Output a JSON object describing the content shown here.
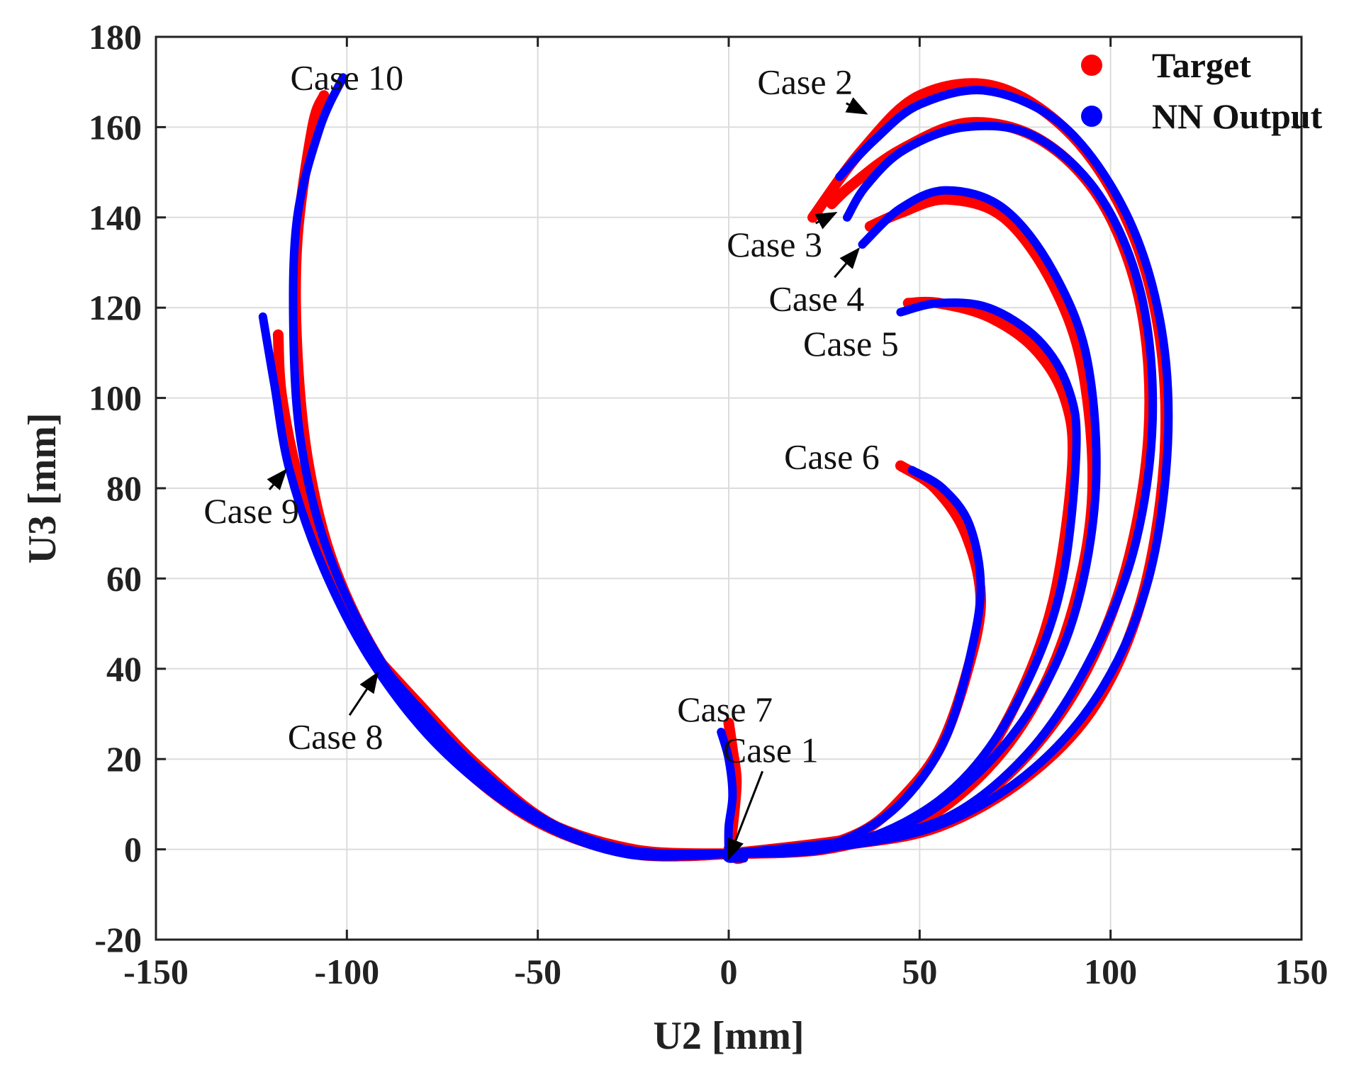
{
  "chart_data": {
    "type": "line",
    "xlabel": "U2 [mm]",
    "ylabel": "U3 [mm]",
    "xlim": [
      -150,
      150
    ],
    "ylim": [
      -20,
      180
    ],
    "xticks": [
      -150,
      -100,
      -50,
      0,
      50,
      100,
      150
    ],
    "yticks": [
      -20,
      0,
      20,
      40,
      60,
      80,
      100,
      120,
      140,
      160,
      180
    ],
    "xtick_labels": [
      "-150",
      "-100",
      "-50",
      "0",
      "50",
      "100",
      "150"
    ],
    "ytick_labels": [
      "-20",
      "0",
      "20",
      "40",
      "60",
      "80",
      "100",
      "120",
      "140",
      "160",
      "180"
    ],
    "grid": true,
    "legend": {
      "placement": "top-right",
      "entries": [
        "Target",
        "NN Output"
      ]
    },
    "colors": {
      "Target": "#ff0000",
      "NN Output": "#0000ff"
    },
    "series": [
      {
        "name": "Target",
        "cases": [
          {
            "case": "Case 1",
            "points": [
              [
                0,
                0
              ],
              [
                1,
                -1
              ],
              [
                2,
                -2
              ],
              [
                3,
                -2
              ]
            ]
          },
          {
            "case": "Case 2",
            "points": [
              [
                0,
                -1
              ],
              [
                30,
                1
              ],
              [
                55,
                5
              ],
              [
                78,
                16
              ],
              [
                96,
                32
              ],
              [
                108,
                55
              ],
              [
                114,
                85
              ],
              [
                113,
                113
              ],
              [
                105,
                138
              ],
              [
                90,
                158
              ],
              [
                70,
                169
              ],
              [
                50,
                167
              ],
              [
                35,
                155
              ],
              [
                22,
                140
              ]
            ]
          },
          {
            "case": "Case 3",
            "points": [
              [
                0,
                -1
              ],
              [
                30,
                2
              ],
              [
                55,
                6
              ],
              [
                75,
                18
              ],
              [
                92,
                37
              ],
              [
                104,
                62
              ],
              [
                110,
                92
              ],
              [
                108,
                120
              ],
              [
                98,
                143
              ],
              [
                82,
                157
              ],
              [
                63,
                161
              ],
              [
                45,
                155
              ],
              [
                32,
                147
              ],
              [
                27,
                143
              ]
            ]
          },
          {
            "case": "Case 4",
            "points": [
              [
                0,
                -1
              ],
              [
                25,
                1
              ],
              [
                50,
                6
              ],
              [
                72,
                22
              ],
              [
                87,
                45
              ],
              [
                95,
                75
              ],
              [
                93,
                105
              ],
              [
                85,
                125
              ],
              [
                72,
                140
              ],
              [
                57,
                144
              ],
              [
                45,
                141
              ],
              [
                37,
                138
              ]
            ]
          },
          {
            "case": "Case 5",
            "points": [
              [
                0,
                -1
              ],
              [
                25,
                0
              ],
              [
                45,
                5
              ],
              [
                62,
                15
              ],
              [
                75,
                32
              ],
              [
                85,
                55
              ],
              [
                90,
                85
              ],
              [
                88,
                100
              ],
              [
                80,
                111
              ],
              [
                68,
                118
              ],
              [
                55,
                121
              ],
              [
                47,
                121
              ]
            ]
          },
          {
            "case": "Case 6",
            "points": [
              [
                0,
                -1
              ],
              [
                20,
                0
              ],
              [
                35,
                4
              ],
              [
                45,
                11
              ],
              [
                55,
                22
              ],
              [
                62,
                38
              ],
              [
                66,
                55
              ],
              [
                62,
                70
              ],
              [
                54,
                80
              ],
              [
                45,
                85
              ]
            ]
          },
          {
            "case": "Case 7",
            "points": [
              [
                0,
                -1
              ],
              [
                1,
                5
              ],
              [
                2,
                15
              ],
              [
                1,
                22
              ],
              [
                0,
                28
              ]
            ]
          },
          {
            "case": "Case 8",
            "points": [
              [
                0,
                -1
              ],
              [
                -20,
                -1
              ],
              [
                -45,
                5
              ],
              [
                -65,
                18
              ],
              [
                -82,
                33
              ],
              [
                -95,
                45
              ]
            ]
          },
          {
            "case": "Case 9",
            "points": [
              [
                0,
                -1
              ],
              [
                -25,
                -1
              ],
              [
                -50,
                6
              ],
              [
                -72,
                20
              ],
              [
                -90,
                38
              ],
              [
                -103,
                58
              ],
              [
                -112,
                80
              ],
              [
                -117,
                100
              ],
              [
                -118,
                114
              ]
            ]
          },
          {
            "case": "Case 10",
            "points": [
              [
                0,
                -1
              ],
              [
                -25,
                0
              ],
              [
                -50,
                7
              ],
              [
                -72,
                21
              ],
              [
                -90,
                40
              ],
              [
                -103,
                62
              ],
              [
                -110,
                85
              ],
              [
                -113,
                110
              ],
              [
                -113,
                135
              ],
              [
                -109,
                160
              ],
              [
                -106,
                167
              ]
            ]
          }
        ]
      },
      {
        "name": "NN Output",
        "cases": [
          {
            "case": "Case 1",
            "points": [
              [
                -1,
                -1
              ],
              [
                0,
                -2
              ],
              [
                2,
                -2
              ],
              [
                4,
                -2
              ]
            ]
          },
          {
            "case": "Case 2",
            "points": [
              [
                0,
                -1
              ],
              [
                32,
                1
              ],
              [
                57,
                6
              ],
              [
                80,
                18
              ],
              [
                98,
                36
              ],
              [
                110,
                60
              ],
              [
                115,
                90
              ],
              [
                113,
                117
              ],
              [
                104,
                141
              ],
              [
                88,
                160
              ],
              [
                68,
                168
              ],
              [
                50,
                165
              ],
              [
                38,
                157
              ],
              [
                29,
                149
              ]
            ]
          },
          {
            "case": "Case 3",
            "points": [
              [
                0,
                -1
              ],
              [
                32,
                2
              ],
              [
                57,
                7
              ],
              [
                78,
                21
              ],
              [
                94,
                41
              ],
              [
                106,
                66
              ],
              [
                111,
                95
              ],
              [
                108,
                123
              ],
              [
                97,
                145
              ],
              [
                80,
                158
              ],
              [
                62,
                160
              ],
              [
                46,
                155
              ],
              [
                36,
                147
              ],
              [
                31,
                140
              ]
            ]
          },
          {
            "case": "Case 4",
            "points": [
              [
                0,
                -1
              ],
              [
                28,
                1
              ],
              [
                52,
                8
              ],
              [
                74,
                25
              ],
              [
                89,
                48
              ],
              [
                96,
                78
              ],
              [
                94,
                108
              ],
              [
                85,
                128
              ],
              [
                72,
                142
              ],
              [
                57,
                146
              ],
              [
                45,
                142
              ],
              [
                35,
                134
              ]
            ]
          },
          {
            "case": "Case 5",
            "points": [
              [
                0,
                -1
              ],
              [
                25,
                0
              ],
              [
                46,
                6
              ],
              [
                63,
                17
              ],
              [
                77,
                35
              ],
              [
                87,
                58
              ],
              [
                91,
                88
              ],
              [
                89,
                102
              ],
              [
                81,
                113
              ],
              [
                68,
                120
              ],
              [
                55,
                121
              ],
              [
                45,
                119
              ]
            ]
          },
          {
            "case": "Case 6",
            "points": [
              [
                0,
                -1
              ],
              [
                22,
                0
              ],
              [
                37,
                5
              ],
              [
                48,
                13
              ],
              [
                57,
                25
              ],
              [
                63,
                42
              ],
              [
                66,
                58
              ],
              [
                63,
                72
              ],
              [
                56,
                80
              ],
              [
                48,
                84
              ]
            ]
          },
          {
            "case": "Case 7",
            "points": [
              [
                0,
                -1
              ],
              [
                0,
                5
              ],
              [
                1,
                12
              ],
              [
                0,
                20
              ],
              [
                -2,
                26
              ]
            ]
          },
          {
            "case": "Case 8",
            "points": [
              [
                0,
                -1
              ],
              [
                -22,
                -1
              ],
              [
                -47,
                6
              ],
              [
                -67,
                19
              ],
              [
                -84,
                34
              ],
              [
                -96,
                46
              ]
            ]
          },
          {
            "case": "Case 9",
            "points": [
              [
                0,
                -1
              ],
              [
                -27,
                -1
              ],
              [
                -52,
                7
              ],
              [
                -75,
                22
              ],
              [
                -93,
                41
              ],
              [
                -106,
                62
              ],
              [
                -115,
                84
              ],
              [
                -119,
                103
              ],
              [
                -122,
                118
              ]
            ]
          },
          {
            "case": "Case 10",
            "points": [
              [
                0,
                -1
              ],
              [
                -27,
                0
              ],
              [
                -52,
                8
              ],
              [
                -74,
                23
              ],
              [
                -92,
                43
              ],
              [
                -105,
                66
              ],
              [
                -112,
                90
              ],
              [
                -114,
                115
              ],
              [
                -113,
                140
              ],
              [
                -107,
                160
              ],
              [
                -101,
                171
              ]
            ]
          }
        ]
      }
    ],
    "annotations": [
      {
        "text": "Case 10",
        "label_at": [
          -100,
          171
        ],
        "arrow_to": null
      },
      {
        "text": "Case 2",
        "label_at": [
          20,
          170
        ],
        "arrow_to": [
          36,
          163
        ]
      },
      {
        "text": "Case 3",
        "label_at": [
          12,
          134
        ],
        "arrow_to": [
          28,
          141
        ]
      },
      {
        "text": "Case 4",
        "label_at": [
          23,
          122
        ],
        "arrow_to": [
          34,
          133
        ]
      },
      {
        "text": "Case 5",
        "label_at": [
          32,
          112
        ],
        "arrow_to": null
      },
      {
        "text": "Case 6",
        "label_at": [
          27,
          87
        ],
        "arrow_to": null
      },
      {
        "text": "Case 7",
        "label_at": [
          -1,
          31
        ],
        "arrow_to": null
      },
      {
        "text": "Case 1",
        "label_at": [
          11,
          22
        ],
        "arrow_to": [
          0,
          -2
        ]
      },
      {
        "text": "Case 8",
        "label_at": [
          -103,
          25
        ],
        "arrow_to": [
          -92,
          39
        ]
      },
      {
        "text": "Case 9",
        "label_at": [
          -125,
          75
        ],
        "arrow_to": [
          -116,
          84
        ]
      }
    ]
  }
}
